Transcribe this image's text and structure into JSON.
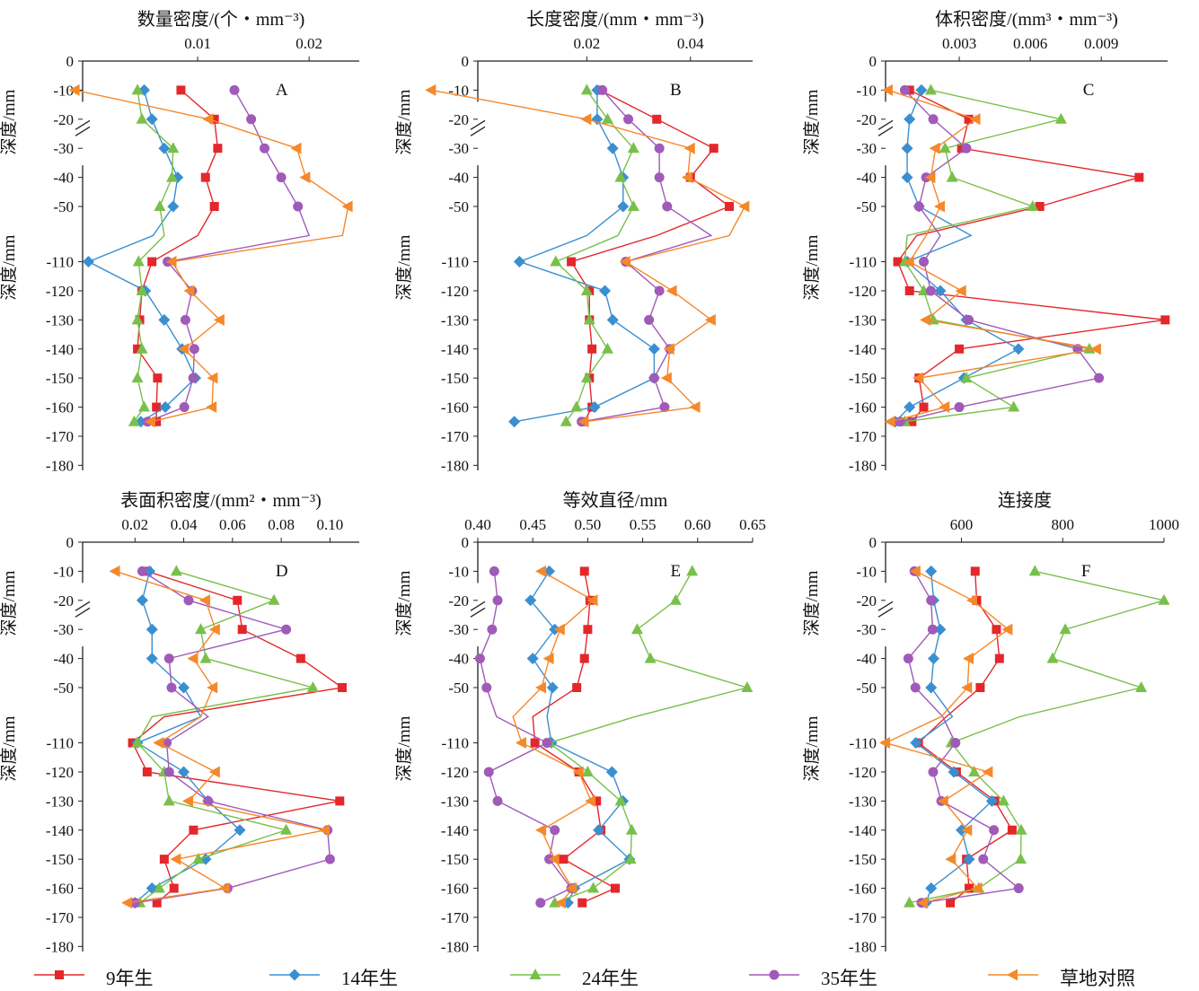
{
  "colors": {
    "9yr": "#e3272b",
    "14yr": "#3a8fd1",
    "24yr": "#78c04a",
    "35yr": "#a05ab8",
    "grass": "#f5882b"
  },
  "legend": [
    {
      "key": "9yr",
      "label": "9年生",
      "marker": "square"
    },
    {
      "key": "14yr",
      "label": "14年生",
      "marker": "diamond"
    },
    {
      "key": "24yr",
      "label": "24年生",
      "marker": "triangle"
    },
    {
      "key": "35yr",
      "label": "35年生",
      "marker": "circle"
    },
    {
      "key": "grass",
      "label": "草地对照",
      "marker": "tri-left"
    }
  ],
  "depth_axis": {
    "label": "深度/mm",
    "ticks_upper": [
      "0",
      "-10",
      "-20",
      "-30",
      "-40",
      "-50"
    ],
    "ticks_lower": [
      "-110",
      "-120",
      "-130",
      "-140",
      "-150",
      "-160",
      "-170",
      "-180"
    ],
    "depths": [
      -10,
      -20,
      -30,
      -40,
      -50,
      -60,
      -110,
      -120,
      -130,
      -140,
      -150,
      -160,
      -165
    ]
  },
  "chart_data": [
    {
      "type": "line",
      "panel": "A",
      "title": "数量密度/(个・mm⁻³)",
      "xlim": [
        0,
        0.0245
      ],
      "xticks": [
        0.01,
        0.02
      ],
      "xtick_labels": [
        "0.01",
        "0.02"
      ],
      "y": [
        -10,
        -20,
        -30,
        -40,
        -50,
        -60,
        -110,
        -120,
        -130,
        -140,
        -150,
        -160,
        -165
      ],
      "series": [
        {
          "name": "9年生",
          "key": "9yr",
          "values": [
            0.0085,
            0.0115,
            0.0118,
            0.0107,
            0.0115,
            0.01,
            0.0059,
            0.005,
            0.0048,
            0.0046,
            0.0064,
            0.0063,
            0.0063
          ]
        },
        {
          "name": "14年生",
          "key": "14yr",
          "values": [
            0.0052,
            0.0059,
            0.007,
            0.0082,
            0.0078,
            0.006,
            0.0002,
            0.0053,
            0.007,
            0.0086,
            0.0098,
            0.0071,
            0.0049
          ]
        },
        {
          "name": "24年生",
          "key": "24yr",
          "values": [
            0.0046,
            0.005,
            0.0078,
            0.0077,
            0.0066,
            0.007,
            0.0047,
            0.005,
            0.0046,
            0.005,
            0.0046,
            0.0052,
            0.0043
          ]
        },
        {
          "name": "35年生",
          "key": "35yr",
          "values": [
            0.0133,
            0.0148,
            0.016,
            0.0175,
            0.019,
            0.02,
            0.0073,
            0.0095,
            0.0089,
            0.0097,
            0.0096,
            0.0088,
            0.0055
          ]
        },
        {
          "name": "草地对照",
          "key": "grass",
          "values": [
            -0.001,
            0.011,
            0.0189,
            0.0197,
            0.0235,
            0.023,
            0.0077,
            0.0093,
            0.012,
            0.0088,
            0.0114,
            0.0113,
            0.0058
          ]
        }
      ]
    },
    {
      "type": "line",
      "panel": "B",
      "title": "长度密度/(mm・mm⁻³)",
      "xlim": [
        0,
        0.052
      ],
      "xticks": [
        0.02,
        0.04
      ],
      "xtick_labels": [
        "0.02",
        "0.04"
      ],
      "y": [
        -10,
        -20,
        -30,
        -40,
        -50,
        -60,
        -110,
        -120,
        -130,
        -140,
        -150,
        -160,
        -165
      ],
      "series": [
        {
          "name": "9年生",
          "key": "9yr",
          "values": [
            0.0225,
            0.0335,
            0.0445,
            0.04,
            0.0475,
            0.0335,
            0.017,
            0.0205,
            0.0205,
            0.021,
            0.0205,
            0.021,
            0.0195
          ]
        },
        {
          "name": "14年生",
          "key": "14yr",
          "values": [
            0.022,
            0.022,
            0.025,
            0.027,
            0.027,
            0.02,
            0.007,
            0.0235,
            0.025,
            0.033,
            0.033,
            0.0215,
            0.006
          ]
        },
        {
          "name": "24年生",
          "key": "24yr",
          "values": [
            0.02,
            0.024,
            0.029,
            0.0265,
            0.029,
            0.026,
            0.014,
            0.02,
            0.0205,
            0.024,
            0.02,
            0.018,
            0.016
          ]
        },
        {
          "name": "35年生",
          "key": "35yr",
          "values": [
            0.023,
            0.028,
            0.034,
            0.034,
            0.0355,
            0.044,
            0.0275,
            0.034,
            0.032,
            0.036,
            0.033,
            0.035,
            0.019
          ]
        },
        {
          "name": "草地对照",
          "key": "grass",
          "values": [
            -0.01,
            0.02,
            0.04,
            0.0395,
            0.0505,
            0.0475,
            0.0275,
            0.0365,
            0.044,
            0.036,
            0.0355,
            0.041,
            0.0195
          ]
        }
      ]
    },
    {
      "type": "line",
      "panel": "C",
      "title": "体积密度/(mm³・mm⁻³)",
      "xlim": [
        0,
        0.0118
      ],
      "xticks": [
        0.003,
        0.006,
        0.009
      ],
      "xtick_labels": [
        "0.003",
        "0.006",
        "0.009"
      ],
      "y": [
        -10,
        -20,
        -30,
        -40,
        -50,
        -60,
        -110,
        -120,
        -130,
        -140,
        -150,
        -160,
        -165
      ],
      "series": [
        {
          "name": "9年生",
          "key": "9yr",
          "values": [
            0.0009,
            0.0034,
            0.0031,
            0.0106,
            0.0064,
            0.0012,
            0.0004,
            0.0009,
            0.0117,
            0.003,
            0.0013,
            0.0015,
            0.001
          ]
        },
        {
          "name": "14年生",
          "key": "14yr",
          "values": [
            0.0014,
            0.0009,
            0.0008,
            0.0008,
            0.0013,
            0.0035,
            0.0008,
            0.0022,
            0.0033,
            0.0055,
            0.0032,
            0.0009,
            0.0003
          ]
        },
        {
          "name": "24年生",
          "key": "24yr",
          "values": [
            0.0018,
            0.0073,
            0.0024,
            0.0027,
            0.0061,
            0.0008,
            0.0007,
            0.0015,
            0.0019,
            0.0085,
            0.0033,
            0.0053,
            0.0007
          ]
        },
        {
          "name": "35年生",
          "key": "35yr",
          "values": [
            0.0007,
            0.0019,
            0.0033,
            0.0016,
            0.0013,
            0.0022,
            0.0015,
            0.0018,
            0.0034,
            0.008,
            0.0089,
            0.003,
            0.0005
          ]
        },
        {
          "name": "草地对照",
          "key": "grass",
          "values": [
            0.0,
            0.0037,
            0.002,
            0.0018,
            0.0022,
            0.0016,
            0.0009,
            0.0031,
            0.0016,
            0.0088,
            0.0013,
            0.0024,
            0.0001
          ]
        }
      ]
    },
    {
      "type": "line",
      "panel": "D",
      "title": "表面积密度/(mm²・mm⁻³)",
      "xlim": [
        0,
        0.112
      ],
      "xticks": [
        0.02,
        0.04,
        0.06,
        0.08,
        0.1
      ],
      "xtick_labels": [
        "0.02",
        "0.04",
        "0.06",
        "0.08",
        "0.10"
      ],
      "y": [
        -10,
        -20,
        -30,
        -40,
        -50,
        -60,
        -110,
        -120,
        -130,
        -140,
        -150,
        -160,
        -165
      ],
      "series": [
        {
          "name": "9年生",
          "key": "9yr",
          "values": [
            0.025,
            0.062,
            0.064,
            0.088,
            0.105,
            0.032,
            0.019,
            0.025,
            0.104,
            0.044,
            0.032,
            0.036,
            0.029
          ]
        },
        {
          "name": "14年生",
          "key": "14yr",
          "values": [
            0.026,
            0.023,
            0.027,
            0.027,
            0.04,
            0.047,
            0.021,
            0.04,
            0.05,
            0.063,
            0.049,
            0.027,
            0.02
          ]
        },
        {
          "name": "24年生",
          "key": "24yr",
          "values": [
            0.037,
            0.077,
            0.047,
            0.049,
            0.093,
            0.027,
            0.021,
            0.032,
            0.034,
            0.082,
            0.046,
            0.03,
            0.022
          ]
        },
        {
          "name": "35年生",
          "key": "35yr",
          "values": [
            0.023,
            0.042,
            0.082,
            0.034,
            0.035,
            0.05,
            0.033,
            0.034,
            0.05,
            0.099,
            0.1,
            0.058,
            0.02
          ]
        },
        {
          "name": "草地对照",
          "key": "grass",
          "values": [
            0.012,
            0.049,
            0.053,
            0.044,
            0.052,
            0.047,
            0.03,
            0.053,
            0.042,
            0.098,
            0.037,
            0.057,
            0.017
          ]
        }
      ]
    },
    {
      "type": "line",
      "panel": "E",
      "title": "等效直径/mm",
      "xlim": [
        0.4,
        0.65
      ],
      "xticks": [
        0.4,
        0.45,
        0.5,
        0.55,
        0.6,
        0.65
      ],
      "xtick_labels": [
        "0.40",
        "0.45",
        "0.50",
        "0.55",
        "0.60",
        "0.65"
      ],
      "y": [
        -10,
        -20,
        -30,
        -40,
        -50,
        -60,
        -110,
        -120,
        -130,
        -140,
        -150,
        -160,
        -165
      ],
      "series": [
        {
          "name": "9年生",
          "key": "9yr",
          "values": [
            0.497,
            0.502,
            0.5,
            0.497,
            0.49,
            0.45,
            0.452,
            0.492,
            0.508,
            0.512,
            0.478,
            0.525,
            0.495
          ]
        },
        {
          "name": "14年生",
          "key": "14yr",
          "values": [
            0.465,
            0.448,
            0.47,
            0.45,
            0.468,
            0.463,
            0.467,
            0.522,
            0.532,
            0.51,
            0.538,
            0.488,
            0.482
          ]
        },
        {
          "name": "24年生",
          "key": "24yr",
          "values": [
            0.595,
            0.58,
            0.545,
            0.557,
            0.645,
            0.543,
            0.465,
            0.5,
            0.53,
            0.54,
            0.539,
            0.505,
            0.47
          ]
        },
        {
          "name": "35年生",
          "key": "35yr",
          "values": [
            0.415,
            0.418,
            0.413,
            0.402,
            0.408,
            0.417,
            0.463,
            0.41,
            0.418,
            0.47,
            0.465,
            0.485,
            0.457
          ]
        },
        {
          "name": "草地对照",
          "key": "grass",
          "values": [
            0.458,
            0.505,
            0.475,
            0.465,
            0.458,
            0.432,
            0.44,
            0.492,
            0.503,
            0.458,
            0.47,
            0.486,
            0.476
          ]
        }
      ]
    },
    {
      "type": "line",
      "panel": "F",
      "title": "连接度",
      "xlim": [
        450,
        1000
      ],
      "xticks": [
        600,
        800,
        1000
      ],
      "xtick_labels": [
        "600",
        "800",
        "1000"
      ],
      "y": [
        -10,
        -20,
        -30,
        -40,
        -50,
        -60,
        -110,
        -120,
        -130,
        -140,
        -150,
        -160,
        -165
      ],
      "series": [
        {
          "name": "9年生",
          "key": "9yr",
          "values": [
            627,
            630,
            669,
            675,
            637,
            570,
            515,
            590,
            666,
            700,
            610,
            615,
            578
          ]
        },
        {
          "name": "14年生",
          "key": "14yr",
          "values": [
            540,
            545,
            558,
            545,
            540,
            582,
            510,
            585,
            660,
            600,
            615,
            540,
            530
          ]
        },
        {
          "name": "24年生",
          "key": "24yr",
          "values": [
            745,
            1000,
            805,
            780,
            955,
            715,
            580,
            625,
            683,
            718,
            717,
            634,
            497
          ]
        },
        {
          "name": "35年生",
          "key": "35yr",
          "values": [
            507,
            540,
            543,
            495,
            509,
            563,
            588,
            544,
            560,
            664,
            643,
            713,
            521
          ]
        },
        {
          "name": "草地对照",
          "key": "grass",
          "values": [
            510,
            622,
            692,
            615,
            612,
            560,
            450,
            653,
            565,
            612,
            580,
            632,
            525
          ]
        }
      ]
    }
  ]
}
